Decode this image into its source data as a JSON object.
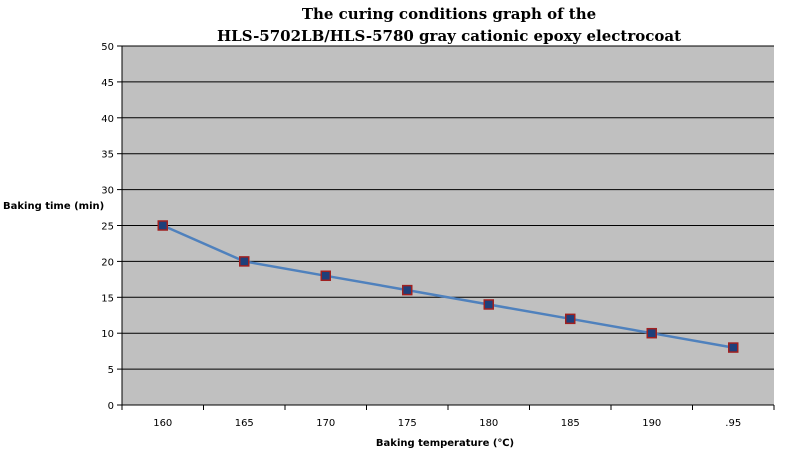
{
  "chart_data": {
    "type": "line",
    "title_lines": [
      "The curing conditions graph of the",
      "HLS-5702LB/HLS-5780 gray cationic epoxy electrocoat"
    ],
    "xlabel": "Baking temperature (℃)",
    "ylabel": "Baking time (min)",
    "categories": [
      "160",
      "165",
      "170",
      "175",
      "180",
      "185",
      "190",
      ".95"
    ],
    "series": [
      {
        "values": [
          25,
          20,
          18,
          16,
          14,
          12,
          10,
          8
        ]
      }
    ],
    "ylim": [
      0,
      50
    ],
    "yticks": [
      0,
      5,
      10,
      15,
      20,
      25,
      30,
      35,
      40,
      45,
      50
    ],
    "grid": true,
    "legend": "none",
    "colors": {
      "plot_background": "#c0c0c0",
      "line": "#4f81bd",
      "marker_fill": "#1f3f7a",
      "marker_edge": "#a02020",
      "gridline": "#000000"
    }
  }
}
